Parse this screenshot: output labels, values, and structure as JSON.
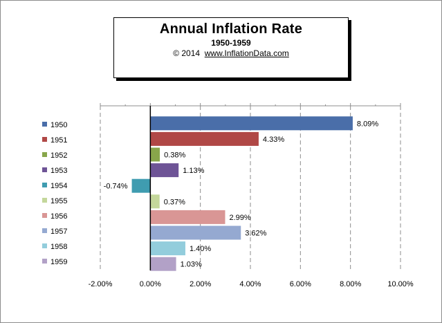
{
  "header": {
    "title": "Annual  Inflation Rate",
    "subtitle": "1950-1959",
    "copyright": "© 2014",
    "website": "www.InflationData.com"
  },
  "chart_data": {
    "type": "bar",
    "orientation": "horizontal",
    "title": "Annual  Inflation Rate",
    "subtitle": "1950-1959",
    "categories": [
      "1950",
      "1951",
      "1952",
      "1953",
      "1954",
      "1955",
      "1956",
      "1957",
      "1958",
      "1959"
    ],
    "values": [
      8.09,
      4.33,
      0.38,
      1.13,
      -0.74,
      0.37,
      2.99,
      3.62,
      1.4,
      1.03
    ],
    "value_labels": [
      "8.09%",
      "4.33%",
      "0.38%",
      "1.13%",
      "-0.74%",
      "0.37%",
      "2.99%",
      "3.62%",
      "1.40%",
      "1.03%"
    ],
    "colors": [
      "#4a6ea9",
      "#b04846",
      "#88a64b",
      "#6e5496",
      "#3f9cb0",
      "#c4d79b",
      "#d99695",
      "#95a9d1",
      "#93cddc",
      "#b2a1c7"
    ],
    "xlim": [
      -2,
      10
    ],
    "xticks": [
      "-2.00%",
      "0.00%",
      "2.00%",
      "4.00%",
      "6.00%",
      "8.00%",
      "10.00%"
    ],
    "grid": "vertical dashed",
    "legend": "left"
  }
}
